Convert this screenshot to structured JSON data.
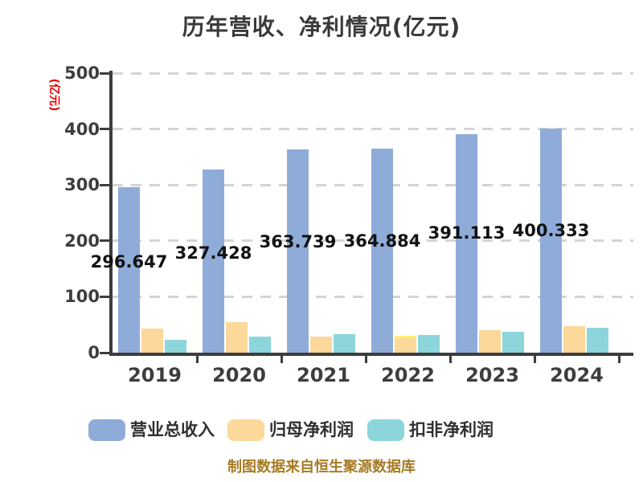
{
  "title": "历年营收、净利情况(亿元)",
  "caption": "制图数据来自恒生聚源数据库",
  "y_axis": {
    "unit": "(亿元)",
    "ticks": [
      0,
      100,
      200,
      300,
      400,
      500
    ]
  },
  "legend": {
    "items": [
      {
        "label": "营业总收入",
        "color": "#8facd9"
      },
      {
        "label": "归母净利润",
        "color": "#fcd89b"
      },
      {
        "label": "扣非净利润",
        "color": "#8cd6db"
      }
    ]
  },
  "colors": {
    "background": "#ffffff",
    "title": "#3a3a3a",
    "axis": "#3d3d3d",
    "grid": "#d4d4d4",
    "value_label": "#121212",
    "unit_label": "#e60000",
    "caption": "#a67b24",
    "bar_blue": "#8facd9",
    "bar_orange": "#fcd89b",
    "bar_teal": "#8cd6db"
  },
  "chart_data": {
    "type": "bar",
    "title": "历年营收、净利情况(亿元)",
    "categories": [
      "2019",
      "2020",
      "2021",
      "2022",
      "2023",
      "2024"
    ],
    "series": [
      {
        "name": "营业总收入",
        "color": "#8facd9",
        "values": [
          296.647,
          327.428,
          363.739,
          364.884,
          391.113,
          400.333
        ],
        "data_labels": [
          "296.647",
          "327.428",
          "363.739",
          "364.884",
          "391.113",
          "400.333"
        ]
      },
      {
        "name": "归母净利润",
        "color": "#fcd89b",
        "values": [
          42.5,
          55.0,
          28.3,
          30.2,
          40.7,
          47.9
        ],
        "note": "unlabeled in chart; values estimated from bar heights"
      },
      {
        "name": "扣非净利润",
        "color": "#8cd6db",
        "values": [
          23.4,
          29.2,
          33.5,
          31.6,
          36.9,
          45.0
        ],
        "note": "unlabeled in chart; values estimated from bar heights"
      }
    ],
    "ylabel": "(亿元)",
    "xlabel": "",
    "ylim": [
      0,
      500
    ],
    "y_tick_step": 100,
    "grid": "horizontal dashed",
    "legend_position": "bottom"
  }
}
